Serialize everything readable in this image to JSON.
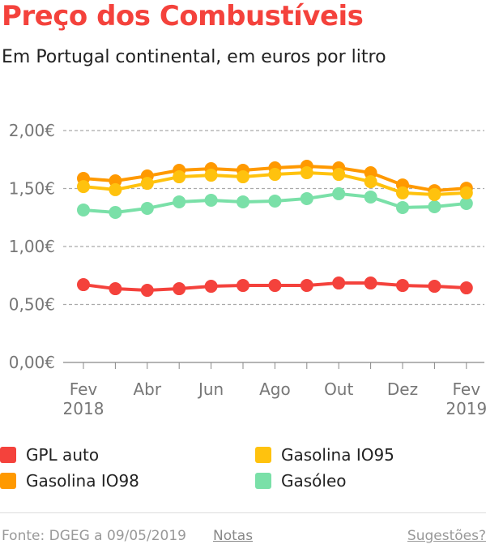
{
  "title": "Preço dos Combustíveis",
  "subtitle": "Em Portugal continental, em euros por litro",
  "chart_data": {
    "type": "line",
    "x": [
      "2018-02",
      "2018-03",
      "2018-04",
      "2018-05",
      "2018-06",
      "2018-07",
      "2018-08",
      "2018-09",
      "2018-10",
      "2018-11",
      "2018-12",
      "2019-01",
      "2019-02"
    ],
    "x_tick_labels": [
      {
        "i": 0,
        "top": "Fev",
        "bottom": "2018"
      },
      {
        "i": 2,
        "top": "Abr",
        "bottom": ""
      },
      {
        "i": 4,
        "top": "Jun",
        "bottom": ""
      },
      {
        "i": 6,
        "top": "Ago",
        "bottom": ""
      },
      {
        "i": 8,
        "top": "Out",
        "bottom": ""
      },
      {
        "i": 10,
        "top": "Dez",
        "bottom": ""
      },
      {
        "i": 12,
        "top": "Fev",
        "bottom": "2019"
      }
    ],
    "y_tick_labels": [
      "0,00€",
      "0,50€",
      "1,00€",
      "1,50€",
      "2,00€"
    ],
    "y_ticks": [
      0,
      0.5,
      1,
      1.5,
      2
    ],
    "ylim": [
      0,
      2
    ],
    "grid": "horizontal dashed",
    "legend": "bottom",
    "series": [
      {
        "name": "GPL auto",
        "color": "#f4423c",
        "values": [
          0.671,
          0.636,
          0.622,
          0.636,
          0.657,
          0.664,
          0.664,
          0.664,
          0.685,
          0.685,
          0.664,
          0.657,
          0.643
        ]
      },
      {
        "name": "Gasolina IO95",
        "color": "#ffc20e",
        "values": [
          1.517,
          1.49,
          1.545,
          1.601,
          1.615,
          1.601,
          1.622,
          1.636,
          1.622,
          1.559,
          1.462,
          1.448,
          1.462
        ]
      },
      {
        "name": "Gasolina IO98",
        "color": "#ff9900",
        "values": [
          1.587,
          1.566,
          1.608,
          1.657,
          1.671,
          1.657,
          1.678,
          1.692,
          1.678,
          1.636,
          1.531,
          1.482,
          1.503
        ]
      },
      {
        "name": "Gasóleo",
        "color": "#7ae0a8",
        "values": [
          1.315,
          1.294,
          1.329,
          1.385,
          1.399,
          1.385,
          1.392,
          1.413,
          1.455,
          1.427,
          1.336,
          1.343,
          1.371
        ]
      }
    ]
  },
  "footer": {
    "source": "Fonte: DGEG a 09/05/2019",
    "notes": "Notas",
    "suggestions": "Sugestões?"
  }
}
